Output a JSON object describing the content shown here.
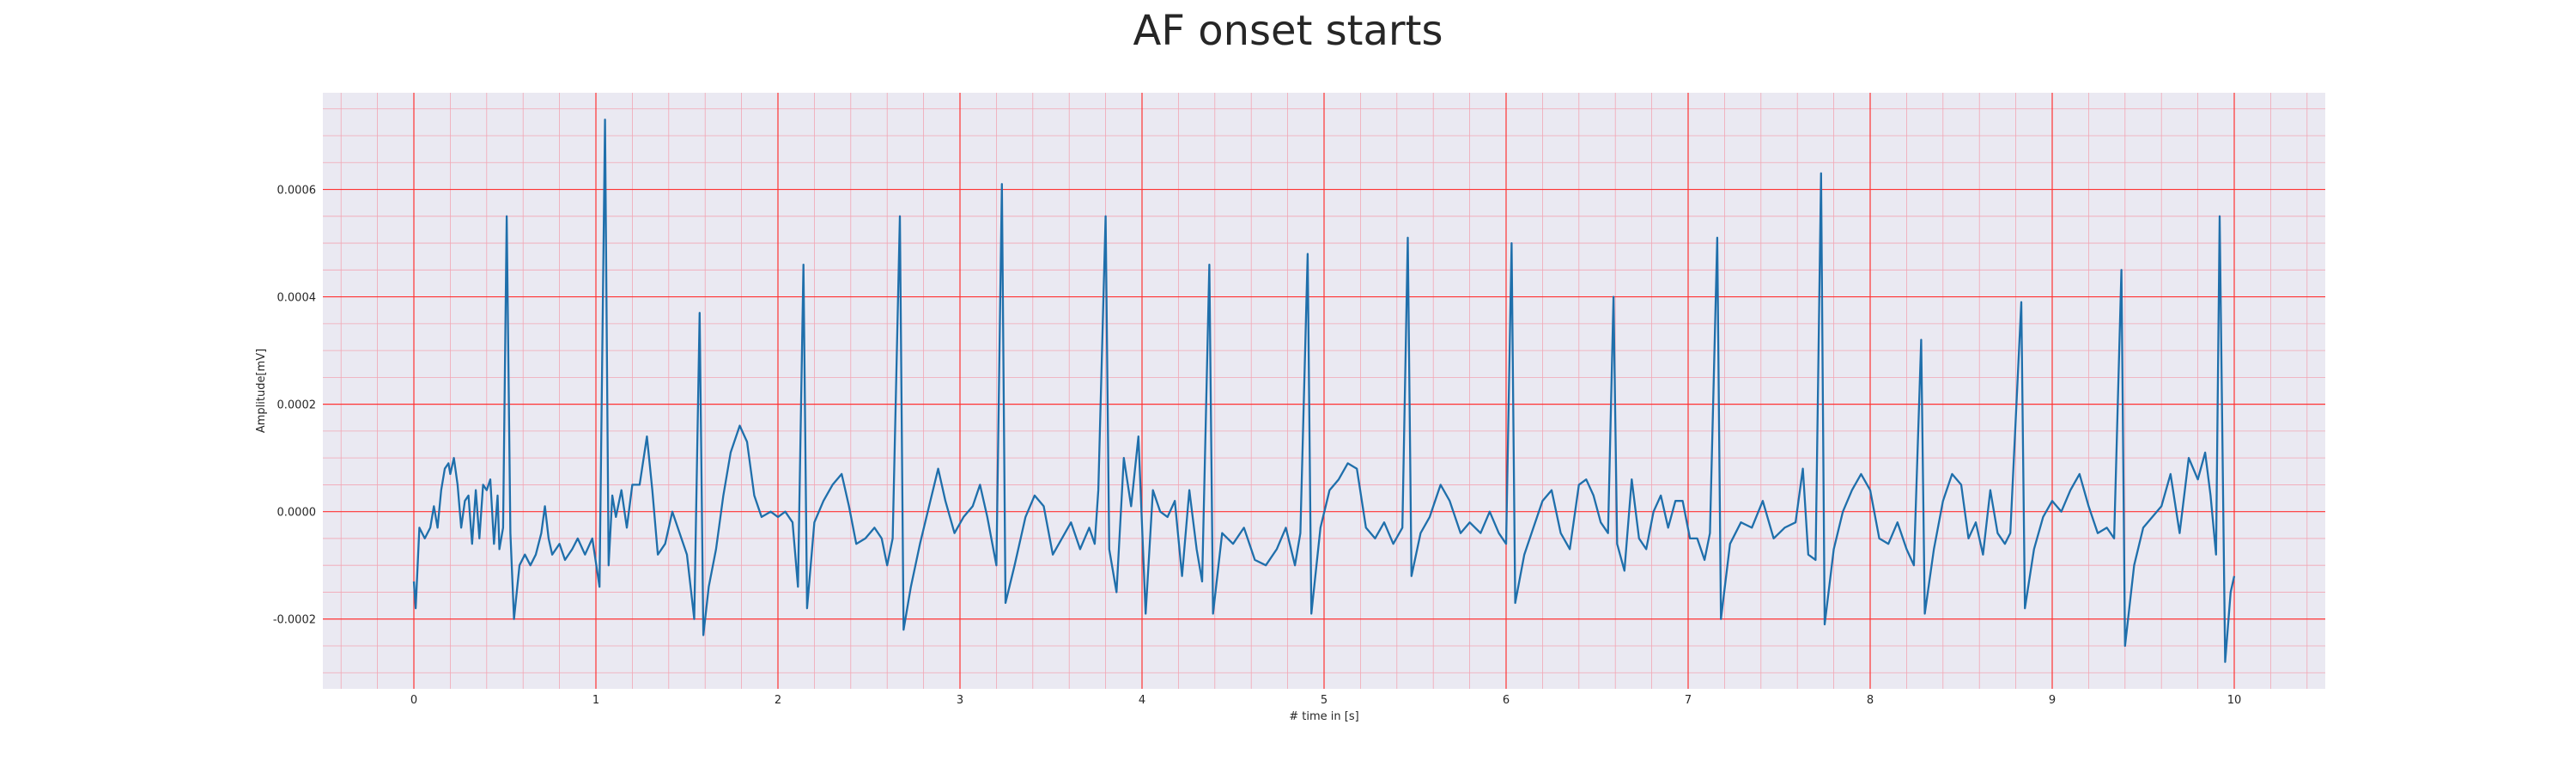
{
  "chart_data": {
    "type": "line",
    "title": "AF onset starts",
    "xlabel": "# time in [s]",
    "ylabel": "Amplitude[mV]",
    "xlim": [
      -0.5,
      10.5
    ],
    "ylim": [
      -0.00033,
      0.00078
    ],
    "xticks": [
      0,
      1,
      2,
      3,
      4,
      5,
      6,
      7,
      8,
      9,
      10
    ],
    "xtick_labels": [
      "0",
      "1",
      "2",
      "3",
      "4",
      "5",
      "6",
      "7",
      "8",
      "9",
      "10"
    ],
    "yticks": [
      -0.0002,
      0.0,
      0.0002,
      0.0004,
      0.0006
    ],
    "ytick_labels": [
      "-0.0002",
      "0.0000",
      "0.0002",
      "0.0004",
      "0.0006"
    ],
    "grid": true,
    "minor_grid": true,
    "colors": {
      "line": "#1f6fab",
      "axes_bg": "#eae9f2",
      "major_grid": "#ff3333",
      "minor_grid": "#f2a6b4"
    },
    "series": [
      {
        "values": [
          [
            0.0,
            -0.00013
          ],
          [
            0.01,
            -0.00018
          ],
          [
            0.03,
            -3e-05
          ],
          [
            0.06,
            -5e-05
          ],
          [
            0.09,
            -3e-05
          ],
          [
            0.11,
            1e-05
          ],
          [
            0.13,
            -3e-05
          ],
          [
            0.15,
            4e-05
          ],
          [
            0.17,
            8e-05
          ],
          [
            0.19,
            9e-05
          ],
          [
            0.2,
            7e-05
          ],
          [
            0.22,
            0.0001
          ],
          [
            0.24,
            5e-05
          ],
          [
            0.26,
            -3e-05
          ],
          [
            0.28,
            2e-05
          ],
          [
            0.3,
            3e-05
          ],
          [
            0.32,
            -6e-05
          ],
          [
            0.34,
            4e-05
          ],
          [
            0.36,
            -5e-05
          ],
          [
            0.38,
            5e-05
          ],
          [
            0.4,
            4e-05
          ],
          [
            0.42,
            6e-05
          ],
          [
            0.44,
            -6e-05
          ],
          [
            0.46,
            3e-05
          ],
          [
            0.47,
            -7e-05
          ],
          [
            0.49,
            -3e-05
          ],
          [
            0.51,
            0.00055
          ],
          [
            0.53,
            -4e-05
          ],
          [
            0.55,
            -0.0002
          ],
          [
            0.58,
            -0.0001
          ],
          [
            0.61,
            -8e-05
          ],
          [
            0.64,
            -0.0001
          ],
          [
            0.67,
            -8e-05
          ],
          [
            0.7,
            -4e-05
          ],
          [
            0.72,
            1e-05
          ],
          [
            0.74,
            -5e-05
          ],
          [
            0.76,
            -8e-05
          ],
          [
            0.8,
            -6e-05
          ],
          [
            0.83,
            -9e-05
          ],
          [
            0.87,
            -7e-05
          ],
          [
            0.9,
            -5e-05
          ],
          [
            0.94,
            -8e-05
          ],
          [
            0.98,
            -5e-05
          ],
          [
            1.02,
            -0.00014
          ],
          [
            1.05,
            0.00073
          ],
          [
            1.07,
            -0.0001
          ],
          [
            1.09,
            3e-05
          ],
          [
            1.11,
            -1e-05
          ],
          [
            1.14,
            4e-05
          ],
          [
            1.17,
            -3e-05
          ],
          [
            1.2,
            5e-05
          ],
          [
            1.24,
            5e-05
          ],
          [
            1.28,
            0.00014
          ],
          [
            1.31,
            4e-05
          ],
          [
            1.34,
            -8e-05
          ],
          [
            1.38,
            -6e-05
          ],
          [
            1.42,
            0.0
          ],
          [
            1.46,
            -4e-05
          ],
          [
            1.5,
            -8e-05
          ],
          [
            1.54,
            -0.0002
          ],
          [
            1.57,
            0.00037
          ],
          [
            1.59,
            -0.00023
          ],
          [
            1.62,
            -0.00014
          ],
          [
            1.66,
            -7e-05
          ],
          [
            1.7,
            3e-05
          ],
          [
            1.74,
            0.00011
          ],
          [
            1.79,
            0.00016
          ],
          [
            1.83,
            0.00013
          ],
          [
            1.87,
            3e-05
          ],
          [
            1.91,
            -1e-05
          ],
          [
            1.96,
            0.0
          ],
          [
            2.0,
            -1e-05
          ],
          [
            2.04,
            0.0
          ],
          [
            2.08,
            -2e-05
          ],
          [
            2.11,
            -0.00014
          ],
          [
            2.14,
            0.00046
          ],
          [
            2.16,
            -0.00018
          ],
          [
            2.2,
            -2e-05
          ],
          [
            2.25,
            2e-05
          ],
          [
            2.3,
            5e-05
          ],
          [
            2.35,
            7e-05
          ],
          [
            2.39,
            1e-05
          ],
          [
            2.43,
            -6e-05
          ],
          [
            2.48,
            -5e-05
          ],
          [
            2.53,
            -3e-05
          ],
          [
            2.57,
            -5e-05
          ],
          [
            2.6,
            -0.0001
          ],
          [
            2.63,
            -5e-05
          ],
          [
            2.67,
            0.00055
          ],
          [
            2.69,
            -0.00022
          ],
          [
            2.73,
            -0.00014
          ],
          [
            2.78,
            -6e-05
          ],
          [
            2.83,
            1e-05
          ],
          [
            2.88,
            8e-05
          ],
          [
            2.92,
            2e-05
          ],
          [
            2.97,
            -4e-05
          ],
          [
            3.02,
            -1e-05
          ],
          [
            3.07,
            1e-05
          ],
          [
            3.11,
            5e-05
          ],
          [
            3.15,
            -1e-05
          ],
          [
            3.2,
            -0.0001
          ],
          [
            3.23,
            0.00061
          ],
          [
            3.25,
            -0.00017
          ],
          [
            3.3,
            -0.0001
          ],
          [
            3.36,
            -1e-05
          ],
          [
            3.41,
            3e-05
          ],
          [
            3.46,
            1e-05
          ],
          [
            3.51,
            -8e-05
          ],
          [
            3.56,
            -5e-05
          ],
          [
            3.61,
            -2e-05
          ],
          [
            3.66,
            -7e-05
          ],
          [
            3.71,
            -3e-05
          ],
          [
            3.74,
            -6e-05
          ],
          [
            3.76,
            4e-05
          ],
          [
            3.8,
            0.00055
          ],
          [
            3.82,
            -7e-05
          ],
          [
            3.86,
            -0.00015
          ],
          [
            3.9,
            0.0001
          ],
          [
            3.94,
            1e-05
          ],
          [
            3.98,
            0.00014
          ],
          [
            4.02,
            -0.00019
          ],
          [
            4.06,
            4e-05
          ],
          [
            4.1,
            0.0
          ],
          [
            4.14,
            -1e-05
          ],
          [
            4.18,
            2e-05
          ],
          [
            4.22,
            -0.00012
          ],
          [
            4.26,
            4e-05
          ],
          [
            4.3,
            -7e-05
          ],
          [
            4.33,
            -0.00013
          ],
          [
            4.37,
            0.00046
          ],
          [
            4.39,
            -0.00019
          ],
          [
            4.44,
            -4e-05
          ],
          [
            4.5,
            -6e-05
          ],
          [
            4.56,
            -3e-05
          ],
          [
            4.62,
            -9e-05
          ],
          [
            4.68,
            -0.0001
          ],
          [
            4.74,
            -7e-05
          ],
          [
            4.79,
            -3e-05
          ],
          [
            4.84,
            -0.0001
          ],
          [
            4.87,
            -4e-05
          ],
          [
            4.91,
            0.00048
          ],
          [
            4.93,
            -0.00019
          ],
          [
            4.98,
            -3e-05
          ],
          [
            5.03,
            4e-05
          ],
          [
            5.08,
            6e-05
          ],
          [
            5.13,
            9e-05
          ],
          [
            5.18,
            8e-05
          ],
          [
            5.23,
            -3e-05
          ],
          [
            5.28,
            -5e-05
          ],
          [
            5.33,
            -2e-05
          ],
          [
            5.38,
            -6e-05
          ],
          [
            5.43,
            -3e-05
          ],
          [
            5.46,
            0.00051
          ],
          [
            5.48,
            -0.00012
          ],
          [
            5.53,
            -4e-05
          ],
          [
            5.58,
            -1e-05
          ],
          [
            5.64,
            5e-05
          ],
          [
            5.69,
            2e-05
          ],
          [
            5.75,
            -4e-05
          ],
          [
            5.8,
            -2e-05
          ],
          [
            5.86,
            -4e-05
          ],
          [
            5.91,
            0.0
          ],
          [
            5.96,
            -4e-05
          ],
          [
            6.0,
            -6e-05
          ],
          [
            6.03,
            0.0005
          ],
          [
            6.05,
            -0.00017
          ],
          [
            6.1,
            -8e-05
          ],
          [
            6.15,
            -3e-05
          ],
          [
            6.2,
            2e-05
          ],
          [
            6.25,
            4e-05
          ],
          [
            6.3,
            -4e-05
          ],
          [
            6.35,
            -7e-05
          ],
          [
            6.4,
            5e-05
          ],
          [
            6.44,
            6e-05
          ],
          [
            6.48,
            3e-05
          ],
          [
            6.52,
            -2e-05
          ],
          [
            6.56,
            -4e-05
          ],
          [
            6.59,
            0.0004
          ],
          [
            6.61,
            -6e-05
          ],
          [
            6.65,
            -0.00011
          ],
          [
            6.69,
            6e-05
          ],
          [
            6.73,
            -5e-05
          ],
          [
            6.77,
            -7e-05
          ],
          [
            6.81,
            0.0
          ],
          [
            6.85,
            3e-05
          ],
          [
            6.89,
            -3e-05
          ],
          [
            6.93,
            2e-05
          ],
          [
            6.97,
            2e-05
          ],
          [
            7.01,
            -5e-05
          ],
          [
            7.05,
            -5e-05
          ],
          [
            7.09,
            -9e-05
          ],
          [
            7.12,
            -4e-05
          ],
          [
            7.16,
            0.00051
          ],
          [
            7.18,
            -0.0002
          ],
          [
            7.23,
            -6e-05
          ],
          [
            7.29,
            -2e-05
          ],
          [
            7.35,
            -3e-05
          ],
          [
            7.41,
            2e-05
          ],
          [
            7.47,
            -5e-05
          ],
          [
            7.53,
            -3e-05
          ],
          [
            7.59,
            -2e-05
          ],
          [
            7.63,
            8e-05
          ],
          [
            7.66,
            -8e-05
          ],
          [
            7.7,
            -9e-05
          ],
          [
            7.73,
            0.00063
          ],
          [
            7.75,
            -0.00021
          ],
          [
            7.8,
            -7e-05
          ],
          [
            7.85,
            0.0
          ],
          [
            7.9,
            4e-05
          ],
          [
            7.95,
            7e-05
          ],
          [
            8.0,
            4e-05
          ],
          [
            8.05,
            -5e-05
          ],
          [
            8.1,
            -6e-05
          ],
          [
            8.15,
            -2e-05
          ],
          [
            8.2,
            -7e-05
          ],
          [
            8.24,
            -0.0001
          ],
          [
            8.28,
            0.00032
          ],
          [
            8.3,
            -0.00019
          ],
          [
            8.35,
            -7e-05
          ],
          [
            8.4,
            2e-05
          ],
          [
            8.45,
            7e-05
          ],
          [
            8.5,
            5e-05
          ],
          [
            8.54,
            -5e-05
          ],
          [
            8.58,
            -2e-05
          ],
          [
            8.62,
            -8e-05
          ],
          [
            8.66,
            4e-05
          ],
          [
            8.7,
            -4e-05
          ],
          [
            8.74,
            -6e-05
          ],
          [
            8.77,
            -4e-05
          ],
          [
            8.83,
            0.00039
          ],
          [
            8.85,
            -0.00018
          ],
          [
            8.9,
            -7e-05
          ],
          [
            8.95,
            -1e-05
          ],
          [
            9.0,
            2e-05
          ],
          [
            9.05,
            0.0
          ],
          [
            9.1,
            4e-05
          ],
          [
            9.15,
            7e-05
          ],
          [
            9.2,
            1e-05
          ],
          [
            9.25,
            -4e-05
          ],
          [
            9.3,
            -3e-05
          ],
          [
            9.34,
            -5e-05
          ],
          [
            9.38,
            0.00045
          ],
          [
            9.4,
            -0.00025
          ],
          [
            9.45,
            -0.0001
          ],
          [
            9.5,
            -3e-05
          ],
          [
            9.55,
            -1e-05
          ],
          [
            9.6,
            1e-05
          ],
          [
            9.65,
            7e-05
          ],
          [
            9.7,
            -4e-05
          ],
          [
            9.75,
            0.0001
          ],
          [
            9.8,
            6e-05
          ],
          [
            9.84,
            0.00011
          ],
          [
            9.87,
            3e-05
          ],
          [
            9.9,
            -8e-05
          ],
          [
            9.92,
            0.00055
          ],
          [
            9.95,
            -0.00028
          ],
          [
            9.98,
            -0.00015
          ],
          [
            10.0,
            -0.00012
          ]
        ]
      }
    ]
  }
}
